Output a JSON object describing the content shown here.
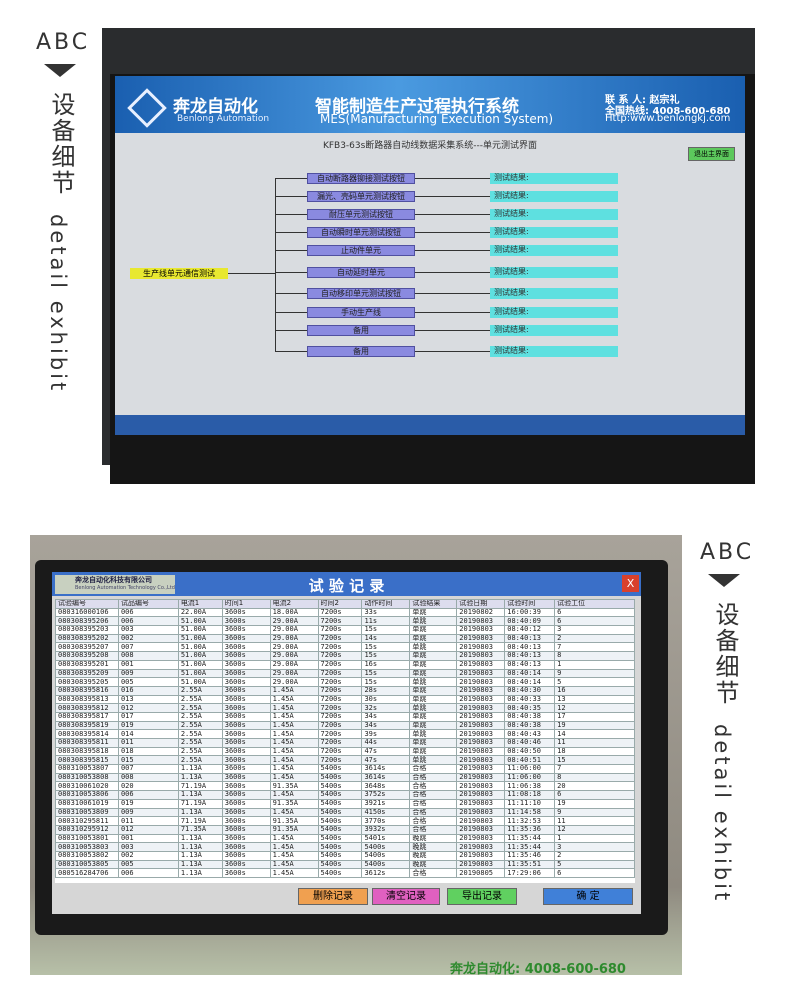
{
  "side_top": {
    "abc": "ABC",
    "cn": "设备细节",
    "en": "detail exhibit"
  },
  "side_bottom": {
    "abc": "ABC",
    "cn": "设备细节",
    "en": "detail exhibit"
  },
  "screen1": {
    "logo_cn": "奔龙自动化",
    "logo_en": "Benlong Automation",
    "title": "智能制造生产过程执行系统",
    "title_en": "MES(Manufacturing Execution System)",
    "contact": "联 系 人: 赵宗礼",
    "hotline": "全国热线: 4008-600-680",
    "website": "Http:www.benlongkj.com",
    "subtitle": "KFB3-63s断路器自动线数据采集系统---单元测试界面",
    "exit_button": "退出主界面",
    "root_node": "生产线单元通信测试",
    "units": [
      {
        "label": "自动断路器铆接测试按钮",
        "result": "测试结果:"
      },
      {
        "label": "漏光、壳码单元测试按钮",
        "result": "测试结果:"
      },
      {
        "label": "耐压单元测试按钮",
        "result": "测试结果:"
      },
      {
        "label": "自动瞬时单元测试按钮",
        "result": "测试结果:"
      },
      {
        "label": "止动件单元",
        "result": "测试结果:"
      },
      {
        "label": "自动延时单元",
        "result": "测试结果:"
      },
      {
        "label": "自动移印单元测试按钮",
        "result": "测试结果:"
      },
      {
        "label": "手动生产线",
        "result": "测试结果:"
      },
      {
        "label": "备用",
        "result": "测试结果:"
      },
      {
        "label": "备用",
        "result": "测试结果:"
      }
    ]
  },
  "screen2": {
    "company": "奔龙自动化科技有限公司",
    "company_en": "Benlong Automation Technology Co.,Ltd",
    "title": "试 验 记 录",
    "close": "X",
    "table": {
      "header": [
        "试验编号",
        "试品编号",
        "电流1",
        "时间1",
        "电流2",
        "时间2",
        "动作时间",
        "试验结果",
        "试验日期",
        "试验时间",
        "试验工位"
      ],
      "rows": [
        [
          "080316000106",
          "006",
          "22.00A",
          "3600s",
          "18.00A",
          "7200s",
          "33s",
          "单跳",
          "20190802",
          "16:00:39",
          "6"
        ],
        [
          "080308395206",
          "006",
          "51.00A",
          "3600s",
          "29.00A",
          "7200s",
          "11s",
          "单跳",
          "20190803",
          "08:40:09",
          "6"
        ],
        [
          "080308395203",
          "003",
          "51.00A",
          "3600s",
          "29.00A",
          "7200s",
          "15s",
          "单跳",
          "20190803",
          "08:40:12",
          "3"
        ],
        [
          "080308395202",
          "002",
          "51.00A",
          "3600s",
          "29.00A",
          "7200s",
          "14s",
          "单跳",
          "20190803",
          "08:40:13",
          "2"
        ],
        [
          "080308395207",
          "007",
          "51.00A",
          "3600s",
          "29.00A",
          "7200s",
          "15s",
          "单跳",
          "20190803",
          "08:40:13",
          "7"
        ],
        [
          "080308395208",
          "008",
          "51.00A",
          "3600s",
          "29.00A",
          "7200s",
          "15s",
          "单跳",
          "20190803",
          "08:40:13",
          "8"
        ],
        [
          "080308395201",
          "001",
          "51.00A",
          "3600s",
          "29.00A",
          "7200s",
          "16s",
          "单跳",
          "20190803",
          "08:40:13",
          "1"
        ],
        [
          "080308395209",
          "009",
          "51.00A",
          "3600s",
          "29.00A",
          "7200s",
          "15s",
          "单跳",
          "20190803",
          "08:40:14",
          "9"
        ],
        [
          "080308395205",
          "005",
          "51.00A",
          "3600s",
          "29.00A",
          "7200s",
          "15s",
          "单跳",
          "20190803",
          "08:40:14",
          "5"
        ],
        [
          "080308395816",
          "016",
          "2.55A",
          "3600s",
          "1.45A",
          "7200s",
          "28s",
          "单跳",
          "20190803",
          "08:40:30",
          "16"
        ],
        [
          "080308395813",
          "013",
          "2.55A",
          "3600s",
          "1.45A",
          "7200s",
          "30s",
          "单跳",
          "20190803",
          "08:40:33",
          "13"
        ],
        [
          "080308395812",
          "012",
          "2.55A",
          "3600s",
          "1.45A",
          "7200s",
          "32s",
          "单跳",
          "20190803",
          "08:40:35",
          "12"
        ],
        [
          "080308395817",
          "017",
          "2.55A",
          "3600s",
          "1.45A",
          "7200s",
          "34s",
          "单跳",
          "20190803",
          "08:40:38",
          "17"
        ],
        [
          "080308395819",
          "019",
          "2.55A",
          "3600s",
          "1.45A",
          "7200s",
          "34s",
          "单跳",
          "20190803",
          "08:40:38",
          "19"
        ],
        [
          "080308395814",
          "014",
          "2.55A",
          "3600s",
          "1.45A",
          "7200s",
          "39s",
          "单跳",
          "20190803",
          "08:40:43",
          "14"
        ],
        [
          "080308395811",
          "011",
          "2.55A",
          "3600s",
          "1.45A",
          "7200s",
          "44s",
          "单跳",
          "20190803",
          "08:40:46",
          "11"
        ],
        [
          "080308395818",
          "018",
          "2.55A",
          "3600s",
          "1.45A",
          "7200s",
          "47s",
          "单跳",
          "20190803",
          "08:40:50",
          "18"
        ],
        [
          "080308395815",
          "015",
          "2.55A",
          "3600s",
          "1.45A",
          "7200s",
          "47s",
          "单跳",
          "20190803",
          "08:40:51",
          "15"
        ],
        [
          "080310053807",
          "007",
          "1.13A",
          "3600s",
          "1.45A",
          "5400s",
          "3614s",
          "合格",
          "20190803",
          "11:06:00",
          "7"
        ],
        [
          "080310053808",
          "008",
          "1.13A",
          "3600s",
          "1.45A",
          "5400s",
          "3614s",
          "合格",
          "20190803",
          "11:06:00",
          "8"
        ],
        [
          "080310061020",
          "020",
          "71.19A",
          "3600s",
          "91.35A",
          "5400s",
          "3648s",
          "合格",
          "20190803",
          "11:06:38",
          "20"
        ],
        [
          "080310053806",
          "006",
          "1.13A",
          "3600s",
          "1.45A",
          "5400s",
          "3752s",
          "合格",
          "20190803",
          "11:08:18",
          "6"
        ],
        [
          "080310061019",
          "019",
          "71.19A",
          "3600s",
          "91.35A",
          "5400s",
          "3921s",
          "合格",
          "20190803",
          "11:11:10",
          "19"
        ],
        [
          "080310053809",
          "009",
          "1.13A",
          "3600s",
          "1.45A",
          "5400s",
          "4150s",
          "合格",
          "20190803",
          "11:14:58",
          "9"
        ],
        [
          "080310295811",
          "011",
          "71.19A",
          "3600s",
          "91.35A",
          "5400s",
          "3770s",
          "合格",
          "20190803",
          "11:32:53",
          "11"
        ],
        [
          "080310295912",
          "012",
          "71.35A",
          "3600s",
          "91.35A",
          "5400s",
          "3932s",
          "合格",
          "20190803",
          "11:35:36",
          "12"
        ],
        [
          "080310053801",
          "001",
          "1.13A",
          "3600s",
          "1.45A",
          "5400s",
          "5401s",
          "晚跳",
          "20190803",
          "11:35:44",
          "1"
        ],
        [
          "080310053803",
          "003",
          "1.13A",
          "3600s",
          "1.45A",
          "5400s",
          "5400s",
          "晚跳",
          "20190803",
          "11:35:44",
          "3"
        ],
        [
          "080310053802",
          "002",
          "1.13A",
          "3600s",
          "1.45A",
          "5400s",
          "5400s",
          "晚跳",
          "20190803",
          "11:35:46",
          "2"
        ],
        [
          "080310053805",
          "005",
          "1.13A",
          "3600s",
          "1.45A",
          "5400s",
          "5400s",
          "晚跳",
          "20190803",
          "11:35:51",
          "5"
        ],
        [
          "080516284706",
          "006",
          "1.13A",
          "3600s",
          "1.45A",
          "5400s",
          "3612s",
          "合格",
          "20190805",
          "17:29:06",
          "6"
        ]
      ]
    },
    "buttons": [
      "删除记录",
      "清空记录",
      "导出记录",
      "确 定"
    ]
  },
  "footer": "奔龙自动化: 4008-600-680"
}
